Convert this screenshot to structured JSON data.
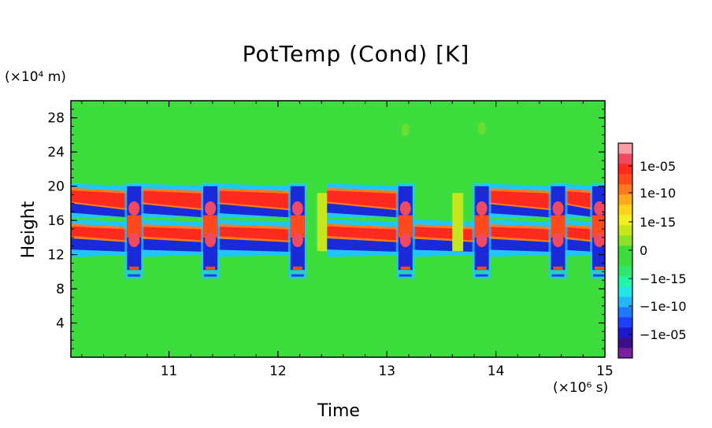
{
  "chart_data": {
    "type": "heatmap",
    "title": "PotTemp (Cond) [K]",
    "xlabel": "Time",
    "ylabel": "Height",
    "x_unit": "(×10⁶ s)",
    "y_unit": "(×10⁴ m)",
    "xlim": [
      10.1,
      15.0
    ],
    "ylim": [
      0,
      30
    ],
    "x_ticks": [
      "11",
      "12",
      "13",
      "14",
      "15"
    ],
    "x_tick_values": [
      11,
      12,
      13,
      14,
      15
    ],
    "y_ticks": [
      "4",
      "8",
      "12",
      "16",
      "20",
      "24",
      "28"
    ],
    "y_tick_values": [
      4,
      8,
      12,
      16,
      20,
      24,
      28
    ],
    "background_value": "0",
    "colorbar": {
      "tick_labels": [
        "1e-05",
        "1e-10",
        "1e-15",
        "0",
        "−1e-15",
        "−1e-10",
        "−1e-05"
      ],
      "colors": [
        "#7a1fa2",
        "#3b0f8a",
        "#1a1acc",
        "#1f3fff",
        "#1f7aff",
        "#22b6ff",
        "#22e6e6",
        "#22f5a8",
        "#2ee86e",
        "#3ddd3d",
        "#3bdd3b",
        "#8fe02a",
        "#c8e61e",
        "#f0f01e",
        "#ffd21e",
        "#ffaa1e",
        "#ff7a1e",
        "#ff4a1e",
        "#ff2a1e",
        "#f04a60",
        "#f8a0a8"
      ]
    },
    "rows": [
      {
        "region": "upper",
        "label": "blue-upper",
        "y_range": [
          16.8,
          17.9
        ],
        "sign": "negative"
      },
      {
        "region": "upper",
        "label": "red-upper",
        "y_range": [
          17.9,
          19.8
        ],
        "sign": "positive"
      },
      {
        "region": "lower",
        "label": "blue-lower",
        "y_range": [
          12.4,
          13.9
        ],
        "sign": "negative"
      },
      {
        "region": "lower",
        "label": "red-lower",
        "y_range": [
          13.9,
          15.6
        ],
        "sign": "positive"
      }
    ],
    "events_x": [
      10.68,
      11.38,
      12.18,
      13.17,
      13.87,
      14.57,
      14.95
    ]
  }
}
